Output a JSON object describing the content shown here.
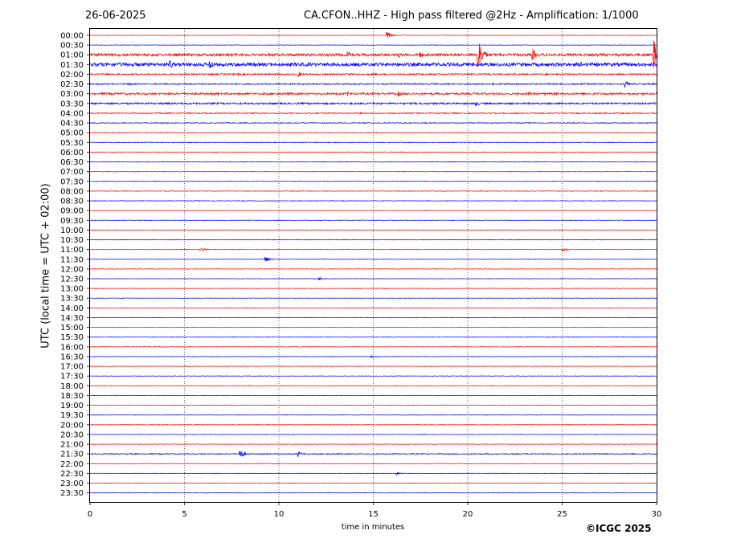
{
  "header": {
    "date": "26-06-2025",
    "title": "CA.CFON..HHZ - High pass filtered @2Hz - Amplification: 1/1000"
  },
  "footer": {
    "copyright": "©ICGC 2025"
  },
  "chart_data": {
    "type": "line",
    "title": "CA.CFON..HHZ - High pass filtered @2Hz - Amplification: 1/1000",
    "xlabel": "time in minutes",
    "ylabel": "UTC (local time = UTC + 02:00)",
    "xlim": [
      0,
      30
    ],
    "x_ticks": [
      0,
      5,
      10,
      15,
      20,
      25,
      30
    ],
    "grid": "vertical dotted lines every 5 minutes",
    "trace_colors": [
      "#ff0000",
      "#0000ff"
    ],
    "rows": [
      "00:00",
      "00:30",
      "01:00",
      "01:30",
      "02:00",
      "02:30",
      "03:00",
      "03:30",
      "04:00",
      "04:30",
      "05:00",
      "05:30",
      "06:00",
      "06:30",
      "07:00",
      "07:30",
      "08:00",
      "08:30",
      "09:00",
      "09:30",
      "10:00",
      "10:30",
      "11:00",
      "11:30",
      "12:00",
      "12:30",
      "13:00",
      "13:30",
      "14:00",
      "14:30",
      "15:00",
      "15:30",
      "16:00",
      "16:30",
      "17:00",
      "17:30",
      "18:00",
      "18:30",
      "19:00",
      "19:30",
      "20:00",
      "20:30",
      "21:00",
      "21:30",
      "22:00",
      "22:30",
      "23:00",
      "23:30"
    ],
    "noise_amplitude": [
      0.3,
      0.3,
      1.6,
      2.2,
      1.0,
      0.8,
      1.2,
      1.1,
      0.7,
      0.5,
      0.4,
      0.4,
      0.4,
      0.4,
      0.35,
      0.35,
      0.35,
      0.35,
      0.3,
      0.3,
      0.35,
      0.35,
      0.35,
      0.3,
      0.3,
      0.3,
      0.3,
      0.3,
      0.3,
      0.3,
      0.3,
      0.3,
      0.3,
      0.3,
      0.3,
      0.3,
      0.3,
      0.3,
      0.3,
      0.3,
      0.3,
      0.3,
      0.3,
      0.6,
      0.3,
      0.3,
      0.3,
      0.3
    ],
    "events": [
      {
        "row": "00:00",
        "minute": 15.7,
        "amp": 5
      },
      {
        "row": "01:00",
        "minute": 13.6,
        "amp": 7
      },
      {
        "row": "01:00",
        "minute": 16.3,
        "amp": 4
      },
      {
        "row": "01:00",
        "minute": 17.4,
        "amp": 6
      },
      {
        "row": "01:00",
        "minute": 20.5,
        "amp": 30
      },
      {
        "row": "01:00",
        "minute": 23.4,
        "amp": 9
      },
      {
        "row": "01:00",
        "minute": 29.8,
        "amp": 26
      },
      {
        "row": "01:30",
        "minute": 2.2,
        "amp": 5
      },
      {
        "row": "01:30",
        "minute": 4.2,
        "amp": 7
      },
      {
        "row": "01:30",
        "minute": 6.3,
        "amp": 9
      },
      {
        "row": "01:30",
        "minute": 26.0,
        "amp": 4
      },
      {
        "row": "02:00",
        "minute": 11.0,
        "amp": 4
      },
      {
        "row": "02:30",
        "minute": 2.0,
        "amp": 3
      },
      {
        "row": "02:30",
        "minute": 28.3,
        "amp": 5
      },
      {
        "row": "03:00",
        "minute": 13.6,
        "amp": 4
      },
      {
        "row": "03:00",
        "minute": 16.3,
        "amp": 4
      },
      {
        "row": "03:00",
        "minute": 23.2,
        "amp": 4
      },
      {
        "row": "03:30",
        "minute": 20.4,
        "amp": 4
      },
      {
        "row": "11:00",
        "minute": 5.8,
        "amp": 4
      },
      {
        "row": "11:00",
        "minute": 25.0,
        "amp": 3
      },
      {
        "row": "11:30",
        "minute": 9.2,
        "amp": 5
      },
      {
        "row": "12:30",
        "minute": 12.1,
        "amp": 3
      },
      {
        "row": "16:30",
        "minute": 14.8,
        "amp": 3
      },
      {
        "row": "21:30",
        "minute": 7.9,
        "amp": 8
      },
      {
        "row": "21:30",
        "minute": 11.0,
        "amp": 4
      },
      {
        "row": "22:30",
        "minute": 16.2,
        "amp": 3
      }
    ]
  }
}
